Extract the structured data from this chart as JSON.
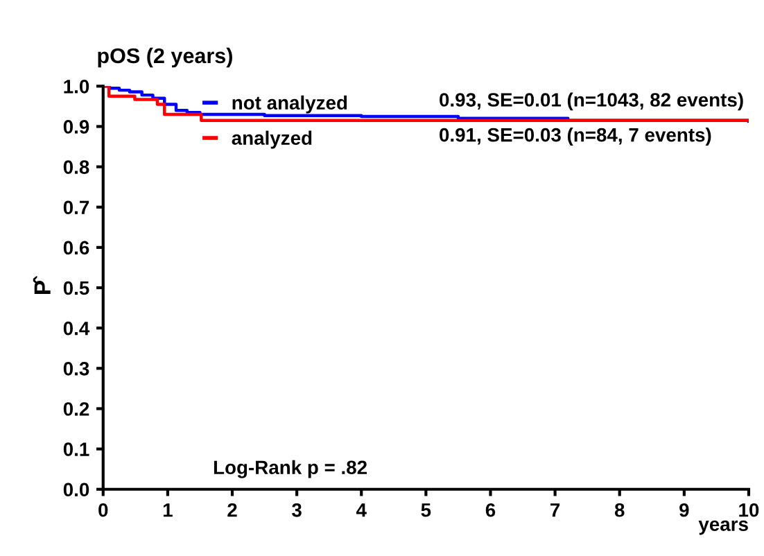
{
  "chart_data": {
    "type": "step",
    "title": "pOS (2 years)",
    "xlabel": "years",
    "ylabel": "P̂",
    "xlim": [
      0,
      10
    ],
    "ylim": [
      0,
      1
    ],
    "xticks": [
      0,
      1,
      2,
      3,
      4,
      5,
      6,
      7,
      8,
      9,
      10
    ],
    "yticks": [
      {
        "value": 0,
        "label": "0.0"
      },
      0.1,
      0.2,
      0.3,
      0.4,
      0.5,
      0.6,
      0.7,
      0.8,
      0.9,
      {
        "value": 1,
        "label": "1.0"
      }
    ],
    "grid": false,
    "legend": "top",
    "line_style": "solid",
    "marker": "none",
    "series": [
      {
        "name": "not analyzed",
        "color": "#0000ff",
        "x": [
          0,
          0.1,
          0.25,
          0.41,
          0.6,
          0.77,
          0.95,
          1.13,
          1.3,
          1.5,
          2.5,
          4.0,
          5.5,
          7.2,
          10
        ],
        "values": [
          1.0,
          0.995,
          0.99,
          0.986,
          0.978,
          0.97,
          0.955,
          0.94,
          0.935,
          0.93,
          0.927,
          0.925,
          0.92,
          0.915,
          0.913
        ]
      },
      {
        "name": "analyzed",
        "color": "#ff0000",
        "x": [
          0,
          0.09,
          0.49,
          0.84,
          0.95,
          1.52,
          10
        ],
        "values": [
          1.0,
          0.975,
          0.967,
          0.955,
          0.93,
          0.915,
          0.915
        ]
      }
    ],
    "annotations": [
      "0.93, SE=0.01 (n=1043, 82 events)",
      "0.91, SE=0.03 (n=84, 7 events)",
      "Log-Rank p = .82"
    ]
  }
}
